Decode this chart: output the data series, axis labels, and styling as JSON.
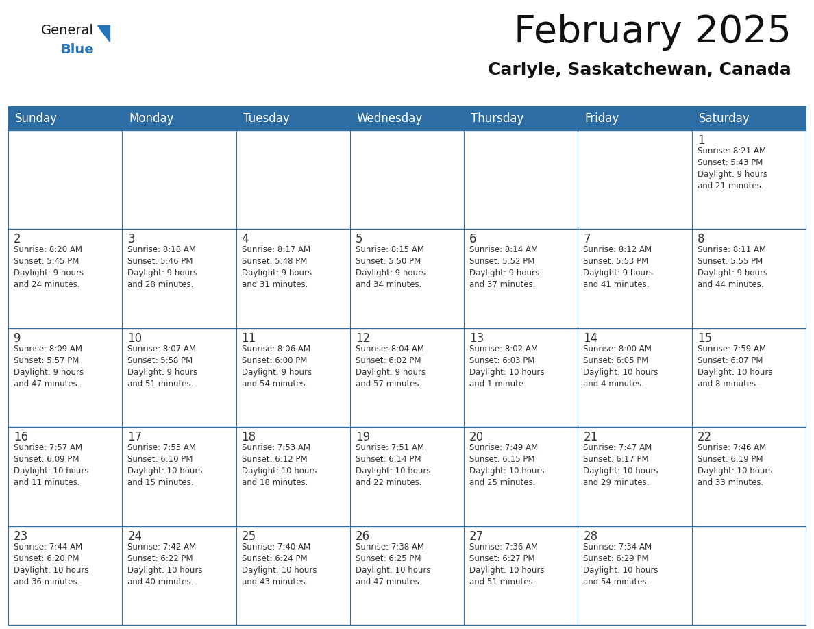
{
  "title": "February 2025",
  "subtitle": "Carlyle, Saskatchewan, Canada",
  "header_bg": "#2E6DA4",
  "header_text_color": "#FFFFFF",
  "cell_bg": "#FFFFFF",
  "cell_alt_bg": "#F0F4F8",
  "cell_border_color": "#2E6DA4",
  "day_number_color": "#333333",
  "info_text_color": "#333333",
  "days_of_week": [
    "Sunday",
    "Monday",
    "Tuesday",
    "Wednesday",
    "Thursday",
    "Friday",
    "Saturday"
  ],
  "weeks": [
    [
      {
        "day": null,
        "info": ""
      },
      {
        "day": null,
        "info": ""
      },
      {
        "day": null,
        "info": ""
      },
      {
        "day": null,
        "info": ""
      },
      {
        "day": null,
        "info": ""
      },
      {
        "day": null,
        "info": ""
      },
      {
        "day": 1,
        "info": "Sunrise: 8:21 AM\nSunset: 5:43 PM\nDaylight: 9 hours\nand 21 minutes."
      }
    ],
    [
      {
        "day": 2,
        "info": "Sunrise: 8:20 AM\nSunset: 5:45 PM\nDaylight: 9 hours\nand 24 minutes."
      },
      {
        "day": 3,
        "info": "Sunrise: 8:18 AM\nSunset: 5:46 PM\nDaylight: 9 hours\nand 28 minutes."
      },
      {
        "day": 4,
        "info": "Sunrise: 8:17 AM\nSunset: 5:48 PM\nDaylight: 9 hours\nand 31 minutes."
      },
      {
        "day": 5,
        "info": "Sunrise: 8:15 AM\nSunset: 5:50 PM\nDaylight: 9 hours\nand 34 minutes."
      },
      {
        "day": 6,
        "info": "Sunrise: 8:14 AM\nSunset: 5:52 PM\nDaylight: 9 hours\nand 37 minutes."
      },
      {
        "day": 7,
        "info": "Sunrise: 8:12 AM\nSunset: 5:53 PM\nDaylight: 9 hours\nand 41 minutes."
      },
      {
        "day": 8,
        "info": "Sunrise: 8:11 AM\nSunset: 5:55 PM\nDaylight: 9 hours\nand 44 minutes."
      }
    ],
    [
      {
        "day": 9,
        "info": "Sunrise: 8:09 AM\nSunset: 5:57 PM\nDaylight: 9 hours\nand 47 minutes."
      },
      {
        "day": 10,
        "info": "Sunrise: 8:07 AM\nSunset: 5:58 PM\nDaylight: 9 hours\nand 51 minutes."
      },
      {
        "day": 11,
        "info": "Sunrise: 8:06 AM\nSunset: 6:00 PM\nDaylight: 9 hours\nand 54 minutes."
      },
      {
        "day": 12,
        "info": "Sunrise: 8:04 AM\nSunset: 6:02 PM\nDaylight: 9 hours\nand 57 minutes."
      },
      {
        "day": 13,
        "info": "Sunrise: 8:02 AM\nSunset: 6:03 PM\nDaylight: 10 hours\nand 1 minute."
      },
      {
        "day": 14,
        "info": "Sunrise: 8:00 AM\nSunset: 6:05 PM\nDaylight: 10 hours\nand 4 minutes."
      },
      {
        "day": 15,
        "info": "Sunrise: 7:59 AM\nSunset: 6:07 PM\nDaylight: 10 hours\nand 8 minutes."
      }
    ],
    [
      {
        "day": 16,
        "info": "Sunrise: 7:57 AM\nSunset: 6:09 PM\nDaylight: 10 hours\nand 11 minutes."
      },
      {
        "day": 17,
        "info": "Sunrise: 7:55 AM\nSunset: 6:10 PM\nDaylight: 10 hours\nand 15 minutes."
      },
      {
        "day": 18,
        "info": "Sunrise: 7:53 AM\nSunset: 6:12 PM\nDaylight: 10 hours\nand 18 minutes."
      },
      {
        "day": 19,
        "info": "Sunrise: 7:51 AM\nSunset: 6:14 PM\nDaylight: 10 hours\nand 22 minutes."
      },
      {
        "day": 20,
        "info": "Sunrise: 7:49 AM\nSunset: 6:15 PM\nDaylight: 10 hours\nand 25 minutes."
      },
      {
        "day": 21,
        "info": "Sunrise: 7:47 AM\nSunset: 6:17 PM\nDaylight: 10 hours\nand 29 minutes."
      },
      {
        "day": 22,
        "info": "Sunrise: 7:46 AM\nSunset: 6:19 PM\nDaylight: 10 hours\nand 33 minutes."
      }
    ],
    [
      {
        "day": 23,
        "info": "Sunrise: 7:44 AM\nSunset: 6:20 PM\nDaylight: 10 hours\nand 36 minutes."
      },
      {
        "day": 24,
        "info": "Sunrise: 7:42 AM\nSunset: 6:22 PM\nDaylight: 10 hours\nand 40 minutes."
      },
      {
        "day": 25,
        "info": "Sunrise: 7:40 AM\nSunset: 6:24 PM\nDaylight: 10 hours\nand 43 minutes."
      },
      {
        "day": 26,
        "info": "Sunrise: 7:38 AM\nSunset: 6:25 PM\nDaylight: 10 hours\nand 47 minutes."
      },
      {
        "day": 27,
        "info": "Sunrise: 7:36 AM\nSunset: 6:27 PM\nDaylight: 10 hours\nand 51 minutes."
      },
      {
        "day": 28,
        "info": "Sunrise: 7:34 AM\nSunset: 6:29 PM\nDaylight: 10 hours\nand 54 minutes."
      },
      {
        "day": null,
        "info": ""
      }
    ]
  ],
  "logo_text1": "General",
  "logo_text2": "Blue",
  "logo_text1_color": "#1a1a1a",
  "logo_text2_color": "#2773B8",
  "logo_triangle_color": "#2773B8",
  "title_fontsize": 40,
  "subtitle_fontsize": 18,
  "header_fontsize": 12,
  "day_num_fontsize": 12,
  "info_fontsize": 8.5,
  "logo_fontsize": 14
}
